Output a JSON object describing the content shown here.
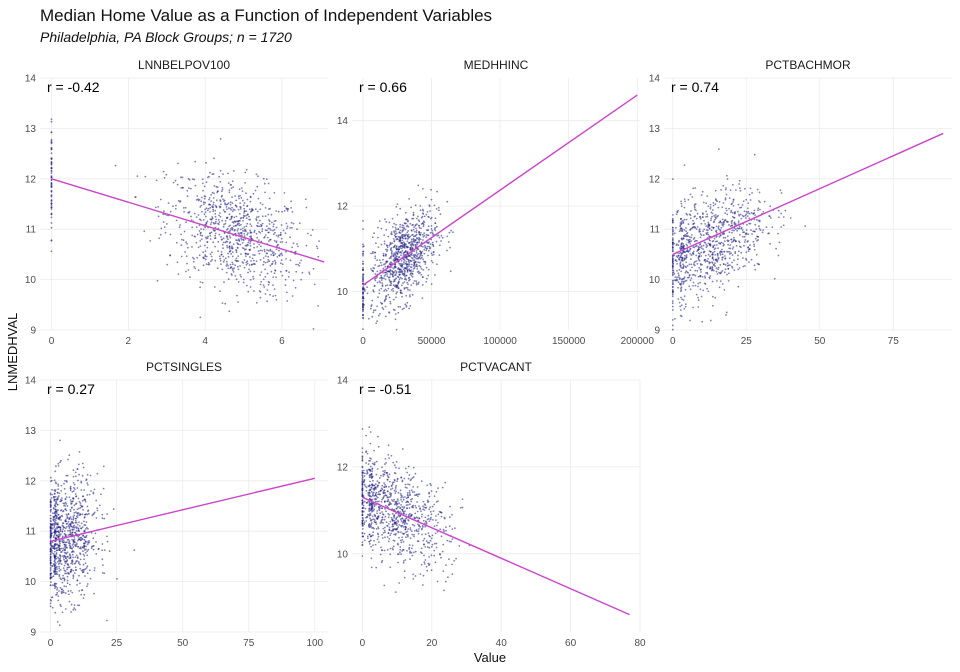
{
  "title": "Median Home Value as a Function of Independent Variables",
  "subtitle": "Philadelphia, PA Block Groups; n = 1720",
  "colors": {
    "points": "#1a1a80",
    "fit_line": "#cc44cc",
    "grid": "#ebebeb"
  },
  "chart_data": [
    {
      "type": "scatter",
      "panel": "LNNBELPOV100",
      "r_label": "r = -0.42",
      "xlim": [
        -0.3,
        7.2
      ],
      "ylim": [
        9,
        14
      ],
      "xticks": [
        0,
        2,
        4,
        6
      ],
      "yticks": [
        9,
        10,
        11,
        12,
        13,
        14
      ],
      "fit": {
        "x": [
          0,
          7.1
        ],
        "y": [
          12.0,
          10.35
        ]
      },
      "cluster": {
        "x_mean": 4.8,
        "x_sd": 0.9,
        "y_at_mean": 10.9,
        "y_sd": 0.55,
        "n": 900
      }
    },
    {
      "type": "scatter",
      "panel": "MEDHHINC",
      "r_label": "r = 0.66",
      "xlim": [
        -8000,
        202000
      ],
      "ylim": [
        9.1,
        15.0
      ],
      "xticks": [
        0,
        50000,
        100000,
        150000,
        200000
      ],
      "yticks": [
        10,
        12,
        14
      ],
      "fit": {
        "x": [
          0,
          200000
        ],
        "y": [
          10.15,
          14.6
        ]
      },
      "cluster": {
        "x_mean": 30000,
        "x_sd": 12000,
        "y_at_mean": 10.8,
        "y_sd": 0.5,
        "n": 900
      }
    },
    {
      "type": "scatter",
      "panel": "PCTBACHMOR",
      "r_label": "r = 0.74",
      "xlim": [
        -3,
        95
      ],
      "ylim": [
        9,
        14
      ],
      "xticks": [
        0,
        25,
        50,
        75
      ],
      "yticks": [
        9,
        10,
        11,
        12,
        13,
        14
      ],
      "fit": {
        "x": [
          0,
          92
        ],
        "y": [
          10.5,
          12.9
        ]
      },
      "cluster": {
        "x_mean": 12,
        "x_sd": 10,
        "y_at_mean": 10.7,
        "y_sd": 0.5,
        "n": 900
      }
    },
    {
      "type": "scatter",
      "panel": "PCTSINGLES",
      "r_label": "r = 0.27",
      "xlim": [
        -4,
        105
      ],
      "ylim": [
        9,
        14
      ],
      "xticks": [
        0,
        25,
        50,
        75,
        100
      ],
      "yticks": [
        9,
        10,
        11,
        12,
        13,
        14
      ],
      "fit": {
        "x": [
          0,
          100
        ],
        "y": [
          10.8,
          12.05
        ]
      },
      "cluster": {
        "x_mean": 6,
        "x_sd": 6,
        "y_at_mean": 10.85,
        "y_sd": 0.6,
        "n": 900
      }
    },
    {
      "type": "scatter",
      "panel": "PCTVACANT",
      "r_label": "r = -0.51",
      "xlim": [
        -3,
        80
      ],
      "ylim": [
        8.2,
        14.0
      ],
      "xticks": [
        0,
        20,
        40,
        60,
        80
      ],
      "yticks": [
        10,
        12,
        14
      ],
      "fit": {
        "x": [
          0,
          77
        ],
        "y": [
          11.3,
          8.6
        ]
      },
      "cluster": {
        "x_mean": 9,
        "x_sd": 8,
        "y_at_mean": 11.0,
        "y_sd": 0.55,
        "n": 900
      }
    }
  ],
  "ylabel": "LNMEDHVAL",
  "xlabel": "Value"
}
